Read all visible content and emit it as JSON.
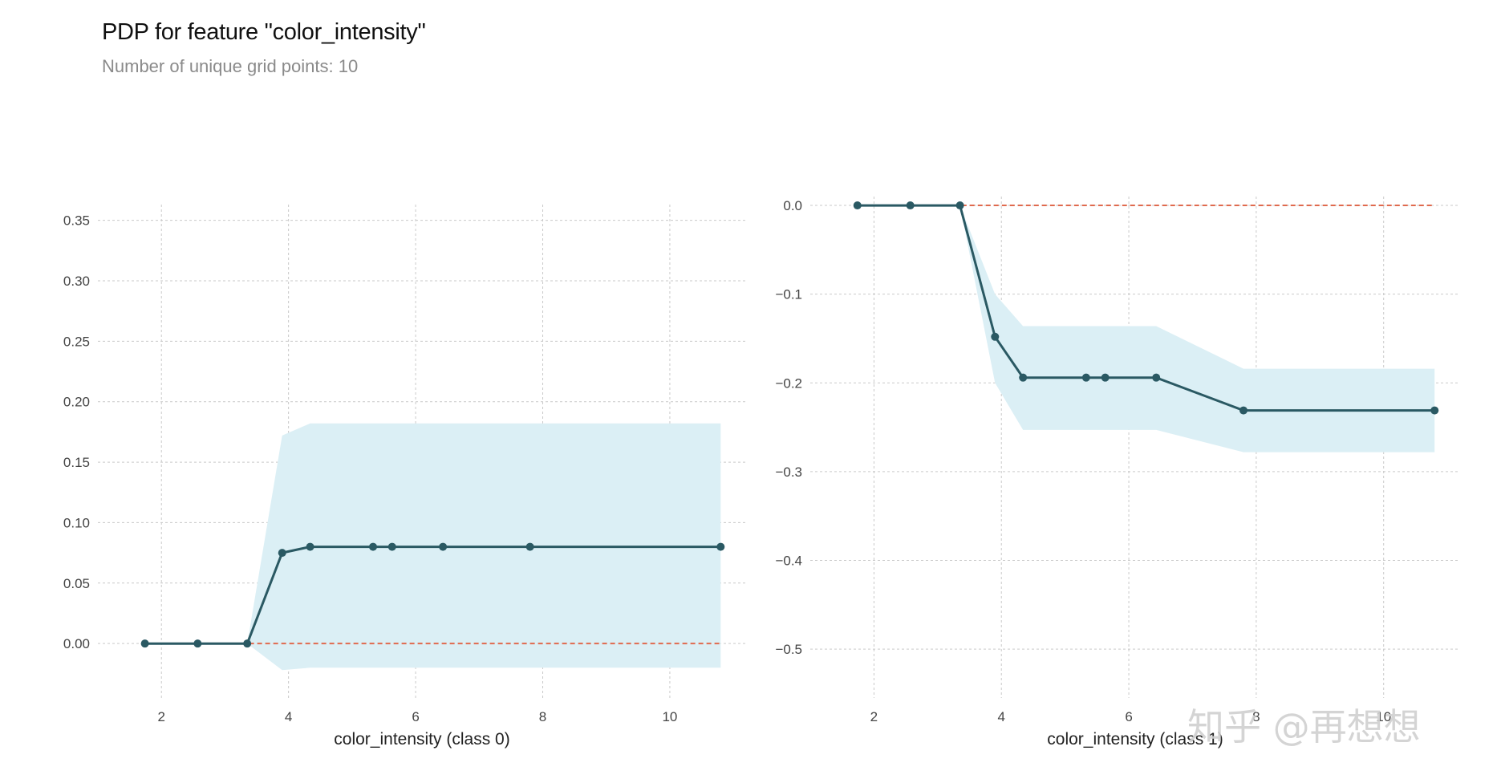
{
  "title": "PDP for feature \"color_intensity\"",
  "subtitle": "Number of unique grid points: 10",
  "watermark": "知乎 @再想想",
  "colors": {
    "line": "#2a5963",
    "band": "#dbeff5",
    "baseline": "#e06a4e",
    "grid": "#c9c9c9"
  },
  "chart_data": [
    {
      "type": "line",
      "title": "",
      "xlabel": "color_intensity (class 0)",
      "ylabel": "",
      "x": [
        1.74,
        2.57,
        3.35,
        3.9,
        4.34,
        5.33,
        5.63,
        6.43,
        7.8,
        10.8
      ],
      "series": [
        {
          "values": [
            0.0,
            0.0,
            0.0,
            0.075,
            0.08,
            0.08,
            0.08,
            0.08,
            0.08,
            0.08
          ],
          "upper": [
            0.0,
            0.0,
            0.0,
            0.172,
            0.182,
            0.182,
            0.182,
            0.182,
            0.182,
            0.182
          ],
          "lower": [
            0.0,
            0.0,
            0.0,
            -0.022,
            -0.02,
            -0.02,
            -0.02,
            -0.02,
            -0.02,
            -0.02
          ]
        }
      ],
      "baseline": 0.0,
      "xticks": [
        2,
        4,
        6,
        8,
        10
      ],
      "yticks": [
        0.0,
        0.05,
        0.1,
        0.15,
        0.2,
        0.25,
        0.3,
        0.35
      ],
      "ytick_labels": [
        "0.00",
        "0.05",
        "0.10",
        "0.15",
        "0.20",
        "0.25",
        "0.30",
        "0.35"
      ],
      "xlim": [
        1.0,
        11.2
      ],
      "ylim": [
        -0.045,
        0.363
      ],
      "grid": true
    },
    {
      "type": "line",
      "title": "",
      "xlabel": "color_intensity (class 1)",
      "ylabel": "",
      "x": [
        1.74,
        2.57,
        3.35,
        3.9,
        4.34,
        5.33,
        5.63,
        6.43,
        7.8,
        10.8
      ],
      "series": [
        {
          "values": [
            0.0,
            0.0,
            0.0,
            -0.148,
            -0.194,
            -0.194,
            -0.194,
            -0.194,
            -0.231,
            -0.231
          ],
          "upper": [
            0.0,
            0.0,
            0.0,
            -0.1,
            -0.136,
            -0.136,
            -0.136,
            -0.136,
            -0.184,
            -0.184
          ],
          "lower": [
            0.0,
            0.0,
            0.0,
            -0.2,
            -0.253,
            -0.253,
            -0.253,
            -0.253,
            -0.278,
            -0.278
          ]
        }
      ],
      "baseline": 0.0,
      "xticks": [
        2,
        4,
        6,
        8,
        10
      ],
      "yticks": [
        0.0,
        -0.1,
        -0.2,
        -0.3,
        -0.4,
        -0.5
      ],
      "ytick_labels": [
        "0.0",
        "−0.1",
        "−0.2",
        "−0.3",
        "−0.4",
        "−0.5"
      ],
      "xlim": [
        1.0,
        11.2
      ],
      "ylim": [
        -0.555,
        0.01
      ],
      "grid": true
    }
  ]
}
